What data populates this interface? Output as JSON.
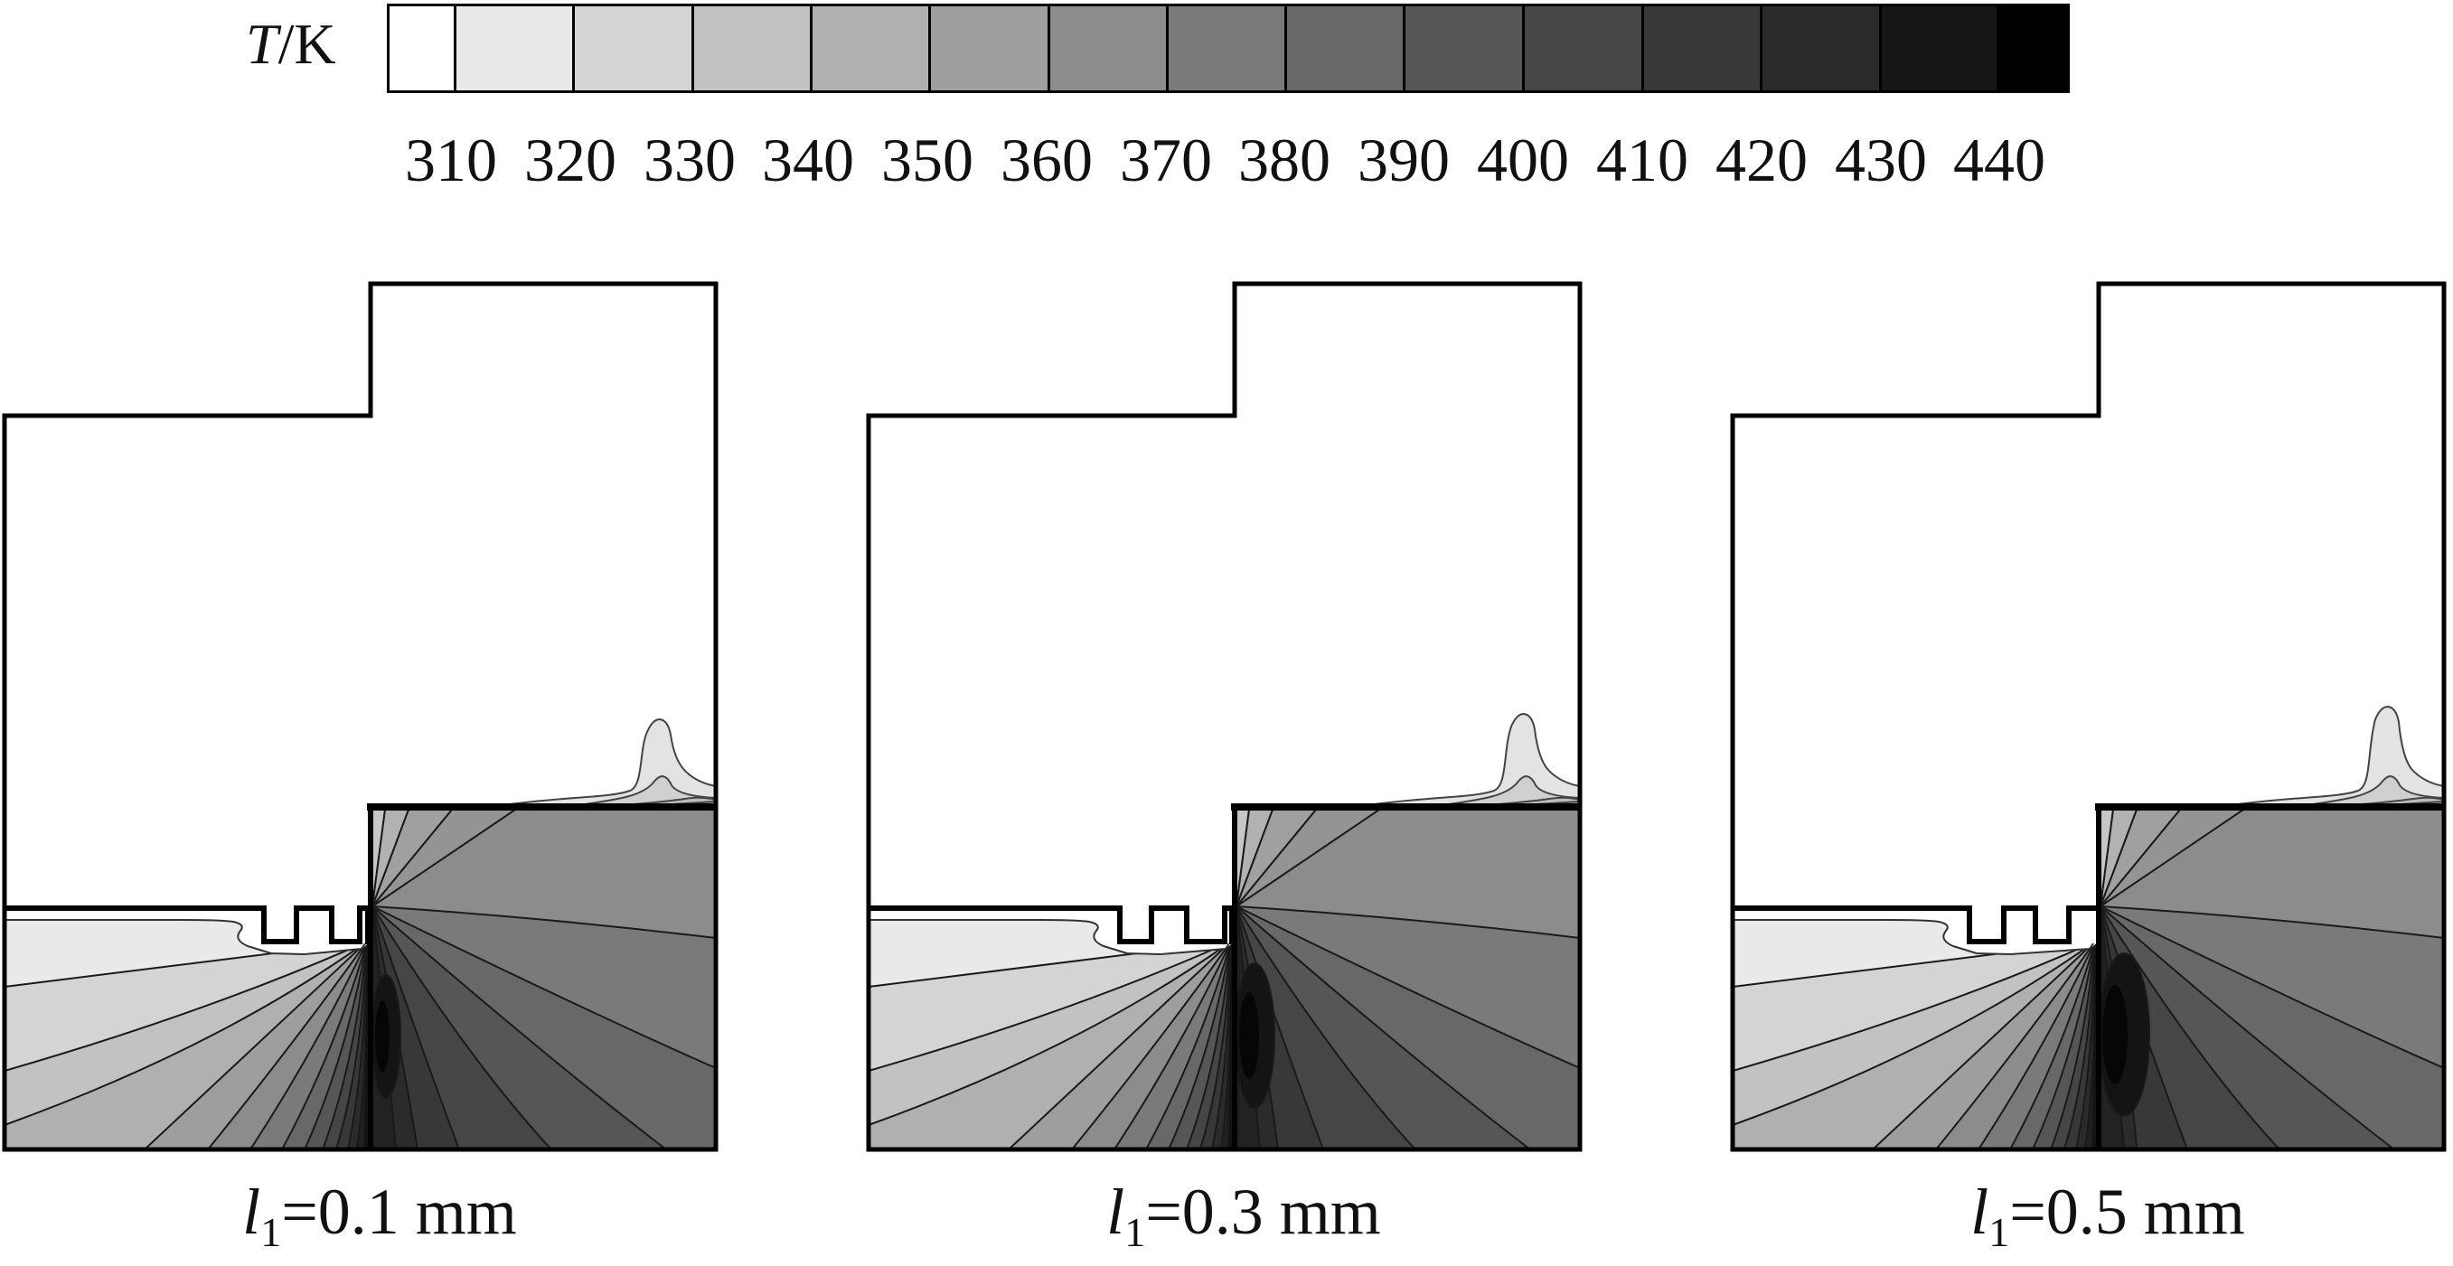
{
  "colorbar": {
    "label_symbol": "T",
    "label_unit": "/K",
    "ticks": [
      "310",
      "320",
      "330",
      "340",
      "350",
      "360",
      "370",
      "380",
      "390",
      "400",
      "410",
      "420",
      "430",
      "440"
    ],
    "band_colors": [
      "#ffffff",
      "#e9e9e9",
      "#d4d4d4",
      "#c2c2c2",
      "#b0b0b0",
      "#9e9e9e",
      "#8c8c8c",
      "#7a7a7a",
      "#686868",
      "#565656",
      "#464646",
      "#383838",
      "#2b2b2b",
      "#161616",
      "#000000"
    ],
    "border_color": "#000000"
  },
  "panels": [
    {
      "caption_var": "l",
      "caption_sub": "1",
      "caption_value": "=0.1 mm",
      "caption": "l1=0.1 mm"
    },
    {
      "caption_var": "l",
      "caption_sub": "1",
      "caption_value": "=0.3 mm",
      "caption": "l1=0.3 mm"
    },
    {
      "caption_var": "l",
      "caption_sub": "1",
      "caption_value": "=0.5 mm",
      "caption": "l1=0.5 mm"
    }
  ],
  "chart_data": {
    "type": "heatmap",
    "subtype": "filled-contour-temperature-field",
    "variable": "temperature",
    "colorbar_label": "T/K",
    "levels_K": [
      310,
      320,
      330,
      340,
      350,
      360,
      370,
      380,
      390,
      400,
      410,
      420,
      430,
      440
    ],
    "level_step_K": 10,
    "colormap": "linear grayscale, white = coolest (below 310 K) to black = hottest (above 440 K)",
    "legend_position": "top",
    "panel_count": 3,
    "panels": [
      {
        "parameter": "l1",
        "value_mm": 0.1,
        "caption": "l1=0.1 mm",
        "hot_spot": "corner between grooved surface and vertical interface, local maximum above 440 K",
        "cool_region": "upper body and far left of lower block below 310 K"
      },
      {
        "parameter": "l1",
        "value_mm": 0.3,
        "caption": "l1=0.3 mm",
        "hot_spot": "corner between grooved surface and vertical interface, local maximum above 440 K; dark kernel slightly larger than l1=0.1 mm",
        "cool_region": "upper body and far left of lower block below 310 K"
      },
      {
        "parameter": "l1",
        "value_mm": 0.5,
        "caption": "l1=0.5 mm",
        "hot_spot": "corner between grooved surface and vertical interface, largest dark kernel of the three cases",
        "cool_region": "upper body and far left of lower block below 310 K"
      }
    ],
    "notes": "Three identical stepped cross-section domains; lower-left block shows temperature fanning from ~440 K at the corner down to <310 K at far left; lower-right block shows 360-440 K field; small warm plume climbs the right wall above the shoulder line."
  }
}
